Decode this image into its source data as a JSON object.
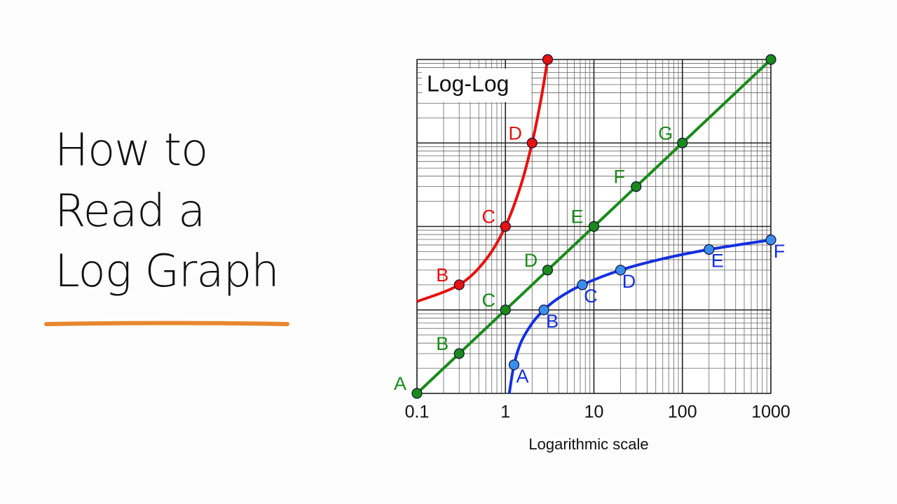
{
  "title": [
    "How to",
    "Read a",
    "Log Graph"
  ],
  "chart_data": {
    "type": "line",
    "annotation": "Log-Log",
    "xlabel": "Logarithmic scale",
    "xscale": "log",
    "yscale": "log",
    "grid": true,
    "xlim": [
      0.1,
      1000
    ],
    "ylim": [
      0.1,
      1000
    ],
    "xticks": [
      0.1,
      1,
      10,
      100,
      1000
    ],
    "series": [
      {
        "color": "#1a8a1a",
        "x": [
          0.1,
          1000
        ],
        "values": [
          0.1,
          1000
        ],
        "points": {
          "x": [
            0.1,
            0.3,
            1,
            3,
            10,
            30,
            100,
            1000
          ],
          "values": [
            0.1,
            0.3,
            1,
            3,
            10,
            30,
            100,
            1000
          ],
          "labels": [
            "A",
            "B",
            "C",
            "D",
            "E",
            "F",
            "G",
            null
          ]
        }
      },
      {
        "color": "#e8110f",
        "x": [
          0.1,
          0.3,
          0.6,
          1,
          1.5,
          2,
          2.5,
          3
        ],
        "values": [
          1.26,
          2,
          4,
          10,
          31.6,
          100,
          316,
          1000
        ],
        "points": {
          "x": [
            0.3,
            1,
            2,
            3
          ],
          "values": [
            2,
            10,
            100,
            1000
          ],
          "labels": [
            "B",
            "C",
            "D",
            null
          ]
        }
      },
      {
        "color": "#1530e0",
        "x": [
          1.105,
          1.25,
          1.5,
          2,
          2.72,
          4,
          7.4,
          20,
          60,
          200,
          1000
        ],
        "values": [
          0.1,
          0.22,
          0.41,
          0.69,
          1,
          1.39,
          2,
          3,
          4.1,
          5.3,
          6.9
        ],
        "points": {
          "x": [
            1.25,
            2.72,
            7.4,
            20,
            200,
            1000
          ],
          "values": [
            0.22,
            1,
            2,
            3,
            5.3,
            6.9
          ],
          "labels": [
            "A",
            "B",
            "C",
            "D",
            "E",
            "F"
          ]
        }
      }
    ]
  }
}
